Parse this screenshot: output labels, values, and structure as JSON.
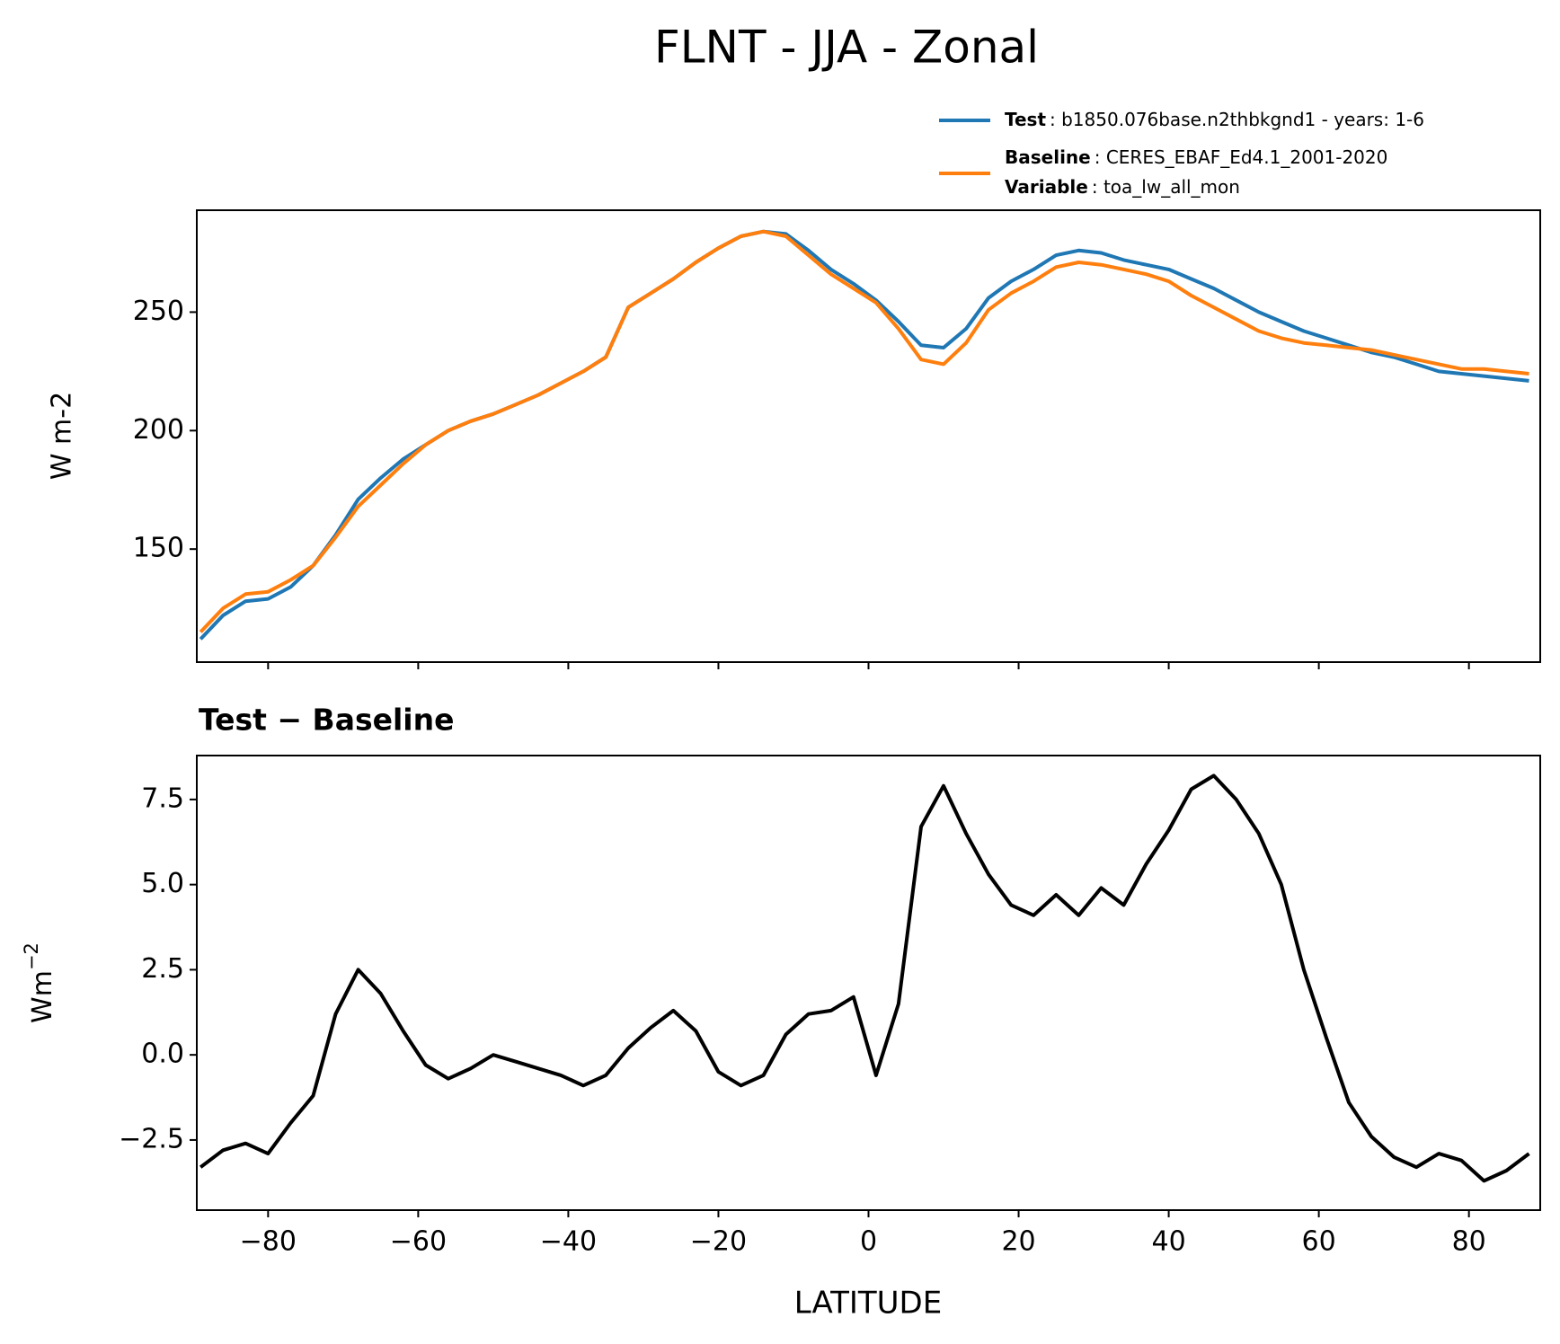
{
  "chart_data": [
    {
      "type": "line",
      "title": "FLNT - JJA - Zonal",
      "ylabel": "W m-2",
      "x": [
        -89,
        -86,
        -83,
        -80,
        -77,
        -74,
        -71,
        -68,
        -65,
        -62,
        -59,
        -56,
        -53,
        -50,
        -47,
        -44,
        -41,
        -38,
        -35,
        -32,
        -29,
        -26,
        -23,
        -20,
        -17,
        -14,
        -11,
        -8,
        -5,
        -2,
        1,
        4,
        7,
        10,
        13,
        16,
        19,
        22,
        25,
        28,
        31,
        34,
        37,
        40,
        43,
        46,
        49,
        52,
        55,
        58,
        61,
        64,
        67,
        70,
        73,
        76,
        79,
        82,
        85,
        88
      ],
      "series": [
        {
          "name": "Test",
          "label": ": b1850.076base.n2thbkgnd1 - years: 1-6",
          "color": "#1f77b4",
          "values": [
            112,
            122,
            128,
            129,
            134,
            143,
            156,
            171,
            180,
            188,
            194,
            200,
            204,
            207,
            211,
            215,
            220,
            225,
            231,
            252,
            258,
            264,
            271,
            277,
            282,
            284,
            283,
            276,
            268,
            262,
            255,
            246,
            236,
            235,
            243,
            256,
            263,
            268,
            274,
            276,
            275,
            272,
            270,
            268,
            264,
            260,
            255,
            250,
            246,
            242,
            239,
            236,
            233,
            231,
            228,
            225,
            224,
            223,
            222,
            221
          ]
        },
        {
          "name": "Baseline",
          "label": ": CERES_EBAF_Ed4.1_2001-2020",
          "color": "#ff7f0e",
          "values": [
            115,
            125,
            131,
            132,
            137,
            143,
            155,
            168,
            177,
            186,
            194,
            200,
            204,
            207,
            211,
            215,
            220,
            225,
            231,
            252,
            258,
            264,
            271,
            277,
            282,
            284,
            282,
            274,
            266,
            260,
            254,
            243,
            230,
            228,
            237,
            251,
            258,
            263,
            269,
            271,
            270,
            268,
            266,
            263,
            257,
            252,
            247,
            242,
            239,
            237,
            236,
            235,
            234,
            232,
            230,
            228,
            226,
            226,
            225,
            224
          ]
        }
      ],
      "legend_extra_name": "Variable",
      "legend_extra_label": ": toa_lw_all_mon",
      "xlim": [
        -89.5,
        89.5
      ],
      "xticks": [
        -80,
        -60,
        -40,
        -20,
        0,
        20,
        40,
        60,
        80
      ],
      "show_xticklabels": false,
      "ylim": [
        102.3,
        293
      ],
      "yticks": [
        150,
        200,
        250
      ]
    },
    {
      "type": "line",
      "title": "Test − Baseline",
      "ylabel": "Wm",
      "ylabel_superscript": "−2",
      "xlabel": "LATITUDE",
      "x": [
        -89,
        -86,
        -83,
        -80,
        -77,
        -74,
        -71,
        -68,
        -65,
        -62,
        -59,
        -56,
        -53,
        -50,
        -47,
        -44,
        -41,
        -38,
        -35,
        -32,
        -29,
        -26,
        -23,
        -20,
        -17,
        -14,
        -11,
        -8,
        -5,
        -2,
        1,
        4,
        7,
        10,
        13,
        16,
        19,
        22,
        25,
        28,
        31,
        34,
        37,
        40,
        43,
        46,
        49,
        52,
        55,
        58,
        61,
        64,
        67,
        70,
        73,
        76,
        79,
        82,
        85,
        88
      ],
      "series": [
        {
          "color": "#000000",
          "values": [
            -3.3,
            -2.8,
            -2.6,
            -2.9,
            -2.0,
            -1.2,
            1.2,
            2.5,
            1.8,
            0.7,
            -0.3,
            -0.7,
            -0.4,
            0.0,
            -0.2,
            -0.4,
            -0.6,
            -0.9,
            -0.6,
            0.2,
            0.8,
            1.3,
            0.7,
            -0.5,
            -0.9,
            -0.6,
            0.6,
            1.2,
            1.3,
            1.7,
            -0.6,
            1.5,
            6.7,
            7.9,
            6.5,
            5.3,
            4.4,
            4.1,
            4.7,
            4.1,
            4.9,
            4.4,
            5.6,
            6.6,
            7.8,
            8.2,
            7.5,
            6.5,
            5.0,
            2.5,
            0.5,
            -1.4,
            -2.4,
            -3.0,
            -3.3,
            -2.9,
            -3.1,
            -3.7,
            -3.4,
            -2.9
          ]
        }
      ],
      "xlim": [
        -89.5,
        89.5
      ],
      "xticks": [
        {
          "value": -80,
          "label": "−80"
        },
        {
          "value": -60,
          "label": "−60"
        },
        {
          "value": -40,
          "label": "−40"
        },
        {
          "value": -20,
          "label": "−20"
        },
        0,
        20,
        40,
        60,
        80
      ],
      "ylim": [
        -4.56,
        8.79
      ],
      "yticks": [
        {
          "value": -2.5,
          "label": "−2.5"
        },
        {
          "value": 0,
          "label": "0.0"
        },
        2.5,
        {
          "value": 5,
          "label": "5.0"
        },
        7.5
      ]
    }
  ]
}
